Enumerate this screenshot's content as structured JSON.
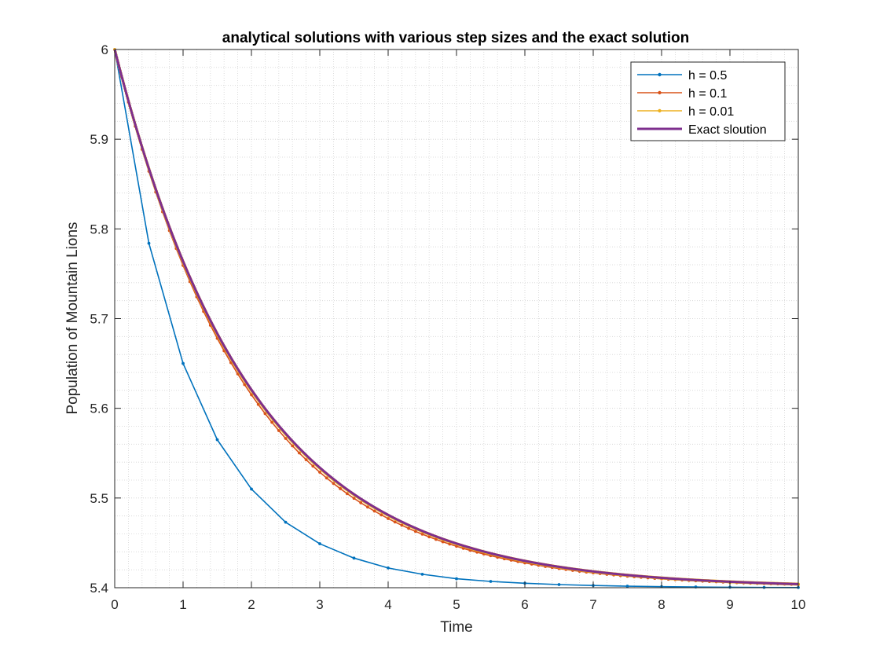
{
  "chart_data": {
    "type": "line",
    "title": "analytical solutions with various step sizes and the exact solution",
    "xlabel": "Time",
    "ylabel": "Population of Mountain Lions",
    "xlim": [
      0,
      10
    ],
    "ylim": [
      5.4,
      6
    ],
    "xticks": [
      "0",
      "1",
      "2",
      "3",
      "4",
      "5",
      "6",
      "7",
      "8",
      "9",
      "10"
    ],
    "yticks": [
      "5.4",
      "5.5",
      "5.6",
      "5.7",
      "5.8",
      "5.9",
      "6"
    ],
    "grid": true,
    "minor_grid": true,
    "legend_position": "top-right",
    "series": [
      {
        "name": "h = 0.5",
        "color": "#0072BD",
        "marker": "dot",
        "x": [
          0,
          0.5,
          1,
          1.5,
          2,
          2.5,
          3,
          3.5,
          4,
          4.5,
          5,
          5.5,
          6,
          6.5,
          7,
          7.5,
          8,
          8.5,
          9,
          9.5,
          10
        ],
        "values": [
          6.0,
          5.784,
          5.65,
          5.565,
          5.51,
          5.473,
          5.449,
          5.433,
          5.422,
          5.415,
          5.41,
          5.407,
          5.405,
          5.4035,
          5.4025,
          5.4017,
          5.4012,
          5.4008,
          5.4005,
          5.4003,
          5.4002
        ]
      },
      {
        "name": "h = 0.1",
        "color": "#D95319",
        "marker": "dot",
        "equation": "y = 5.4 + 0.6 * (1 - 0.05)^(t/0.1)",
        "h": 0.1
      },
      {
        "name": "h = 0.01",
        "color": "#EDB120",
        "marker": "dot",
        "equation": "y = 5.4 + 0.6 * (1 - 0.005)^(t/0.01)",
        "h": 0.01
      },
      {
        "name": "Exact slоution",
        "color": "#7E2F8E",
        "marker": "none",
        "equation": "y = 5.4 + 0.6 * exp(-0.5 t)"
      }
    ]
  },
  "legend": {
    "items": [
      "h = 0.5",
      "h = 0.1",
      "h = 0.01",
      "Exact sloution"
    ]
  }
}
